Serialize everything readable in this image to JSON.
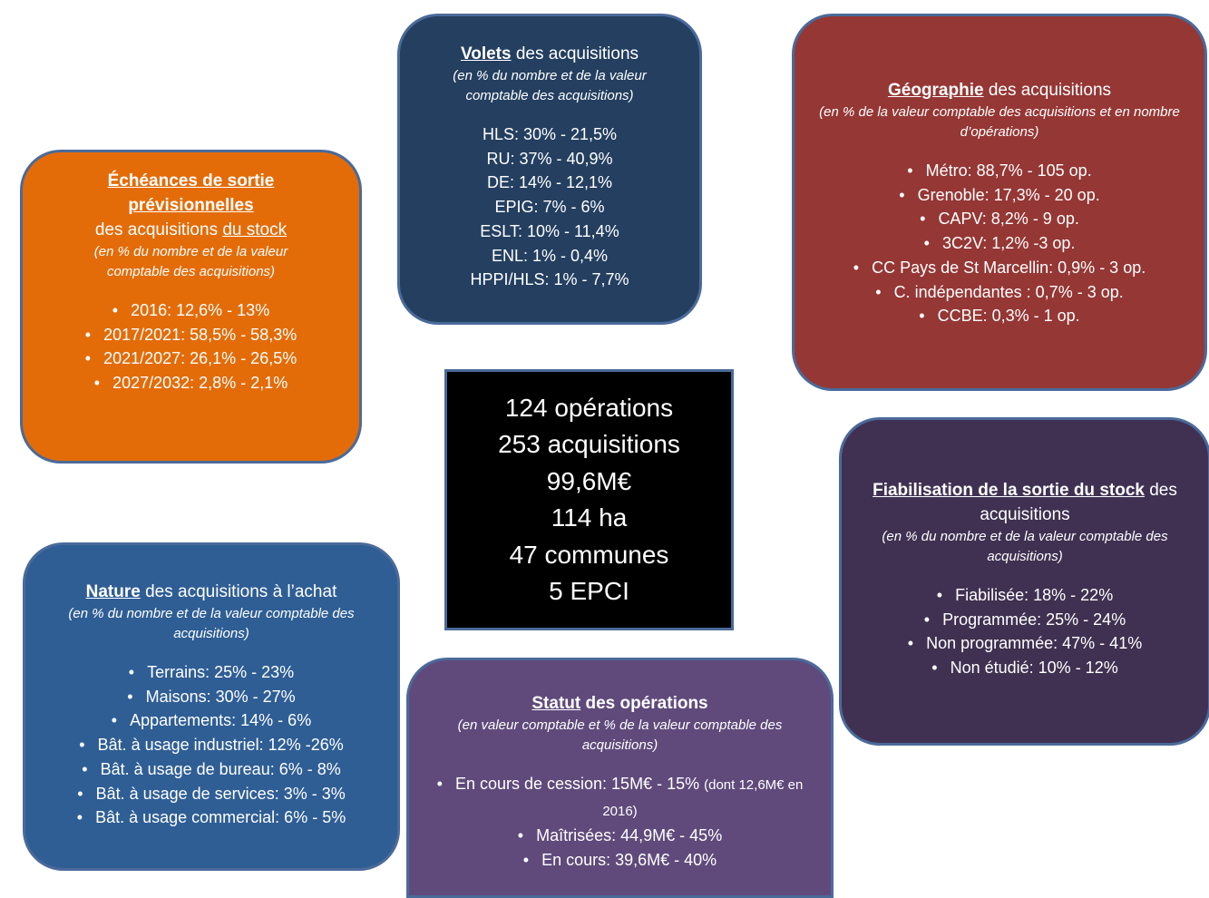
{
  "center": {
    "lines": [
      "124 opérations",
      "253 acquisitions",
      "99,6M€",
      "114 ha",
      "47 communes",
      "5 EPCI"
    ]
  },
  "boxes": [
    {
      "id": "volets",
      "color": "#243f60",
      "title": [
        {
          "text": "Volets",
          "underline": true,
          "bold": true
        },
        {
          "text": " des acquisitions",
          "underline": false,
          "bold": false
        }
      ],
      "subtitle": "(en % du nombre et de la valeur comptable des acquisitions)",
      "items": [
        "HLS: 30% - 21,5%",
        "RU: 37% - 40,9%",
        "DE: 14% - 12,1%",
        "EPIG: 7% - 6%",
        "ESLT: 10% - 11,4%",
        "ENL: 1% - 0,4%",
        "HPPI/HLS: 1% - 7,7%"
      ],
      "bullets": false
    },
    {
      "id": "echeances",
      "color": "#e36c09",
      "title": [
        {
          "text": "Échéances de sortie prévisionnelles",
          "underline": true,
          "bold": true
        },
        {
          "text": "des acquisitions ",
          "underline": false,
          "bold": false
        },
        {
          "text": "du stock",
          "underline": true,
          "bold": false
        }
      ],
      "subtitle": "(en % du nombre et de la valeur comptable des acquisitions)",
      "items": [
        "2016: 12,6% - 13%",
        "2017/2021: 58,5% - 58,3%",
        "2021/2027: 26,1% - 26,5%",
        "2027/2032: 2,8% - 2,1%"
      ],
      "bullets": true
    },
    {
      "id": "geo",
      "color": "#953735",
      "title": [
        {
          "text": "Géographie",
          "underline": true,
          "bold": true
        },
        {
          "text": " des acquisitions",
          "underline": false,
          "bold": false
        }
      ],
      "subtitle": "(en % de la valeur comptable des acquisitions et en nombre d’opérations)",
      "items": [
        "Métro: 88,7% - 105 op.",
        "Grenoble: 17,3% - 20 op.",
        "CAPV: 8,2% - 9 op.",
        "3C2V: 1,2% -3 op.",
        "CC Pays de St Marcellin: 0,9% - 3 op.",
        "C. indépendantes : 0,7% - 3 op.",
        "CCBE: 0,3% - 1 op."
      ],
      "bullets": true
    },
    {
      "id": "fiab",
      "color": "#403152",
      "title": [
        {
          "text": "Fiabilisation de la sortie du stock",
          "underline": true,
          "bold": true
        },
        {
          "text": " des acquisitions",
          "underline": false,
          "bold": false
        }
      ],
      "subtitle": "(en % du nombre et de la valeur comptable des acquisitions)",
      "items": [
        "Fiabilisée: 18% - 22%",
        "Programmée: 25% - 24%",
        "Non programmée: 47% - 41%",
        "Non étudié: 10% - 12%"
      ],
      "bullets": true
    },
    {
      "id": "nature",
      "color": "#2f5e95",
      "title": [
        {
          "text": "Nature",
          "underline": true,
          "bold": true
        },
        {
          "text": " des acquisitions à l’achat",
          "underline": false,
          "bold": false
        }
      ],
      "subtitle": "(en % du nombre et de la valeur comptable des acquisitions)",
      "items": [
        "Terrains: 25% - 23%",
        "Maisons: 30% - 27%",
        "Appartements: 14% - 6%",
        "Bât. à usage industriel: 12% -26%",
        "Bât. à usage de bureau: 6% - 8%",
        "Bât. à usage de services: 3% - 3%",
        "Bât. à usage commercial: 6% - 5%"
      ],
      "bullets": true
    },
    {
      "id": "statut",
      "color": "#604a7b",
      "title": [
        {
          "text": "Statut",
          "underline": true,
          "bold": true
        },
        {
          "text": " des opérations",
          "underline": false,
          "bold": true
        }
      ],
      "subtitle": "(en valeur comptable et % de la valeur comptable des acquisitions)",
      "items": [
        "En cours de cession:  15M€ - 15%",
        "Maîtrisées:  44,9M€ - 45%",
        "En cours: 39,6M€ - 40%"
      ],
      "note": "(dont 12,6M€ en 2016)",
      "bullets": true
    }
  ]
}
